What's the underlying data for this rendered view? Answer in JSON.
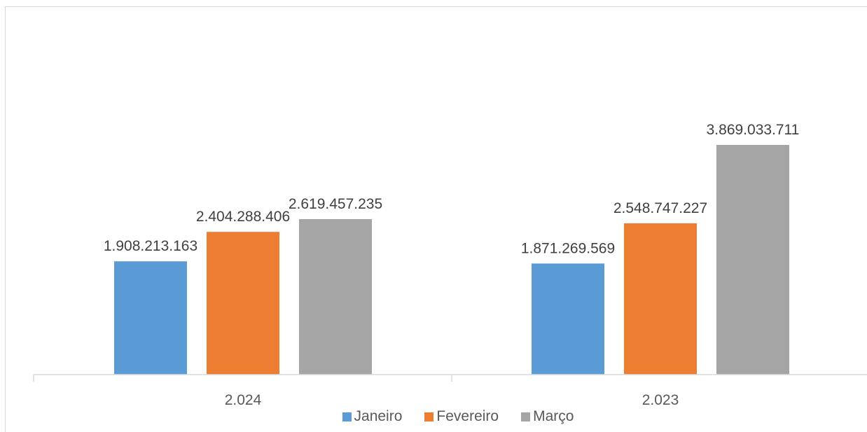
{
  "chart_data": {
    "type": "bar",
    "categories": [
      "2.024",
      "2.023"
    ],
    "series": [
      {
        "name": "Janeiro",
        "color": "#5b9bd5",
        "values": [
          1908213163,
          1871269569
        ],
        "labels": [
          "1.908.213.163",
          "1.871.269.569"
        ]
      },
      {
        "name": "Fevereiro",
        "color": "#ed7d31",
        "values": [
          2404288406,
          2548747227
        ],
        "labels": [
          "2.404.288.406",
          "2.548.747.227"
        ]
      },
      {
        "name": "Março",
        "color": "#a5a5a5",
        "values": [
          2619457235,
          3869033711
        ],
        "labels": [
          "2.619.457.235",
          "3.869.033.711"
        ]
      }
    ],
    "title": "",
    "xlabel": "",
    "ylabel": "",
    "ylim": [
      0,
      5000000000
    ],
    "grid": false,
    "legend_position": "bottom"
  }
}
